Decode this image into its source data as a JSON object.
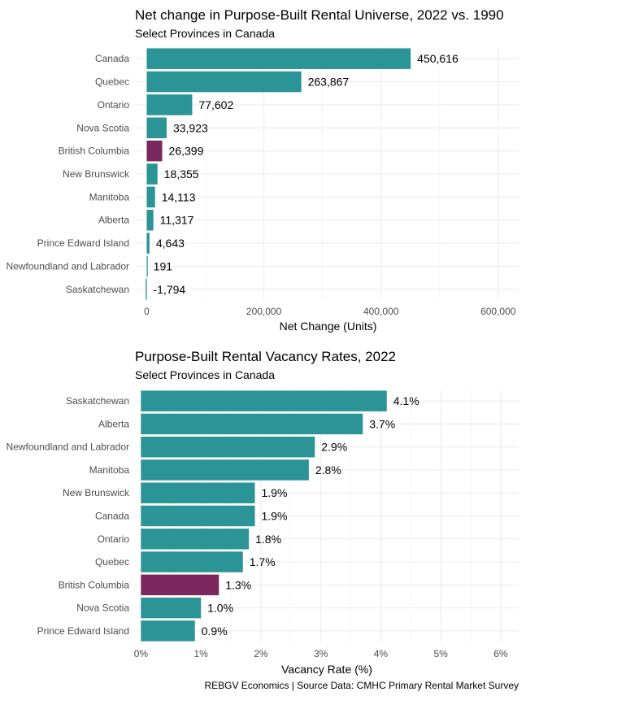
{
  "colors": {
    "default": "#2a9496",
    "highlight": "#7a285e"
  },
  "caption": "REBGV Economics | Source Data: CMHC Primary Rental Market Survey",
  "chart_data": [
    {
      "type": "bar",
      "orientation": "horizontal",
      "title": "Net change in Purpose-Built Rental Universe, 2022 vs. 1990",
      "subtitle": "Select Provinces in Canada",
      "xlabel": "Net Change (Units)",
      "ylabel": "",
      "xlim": [
        -16000,
        635000
      ],
      "xticks": [
        0,
        200000,
        400000,
        600000
      ],
      "xtick_labels": [
        "0",
        "200,000",
        "400,000",
        "600,000"
      ],
      "grid": true,
      "categories": [
        "Canada",
        "Quebec",
        "Ontario",
        "Nova Scotia",
        "British Columbia",
        "New Brunswick",
        "Manitoba",
        "Alberta",
        "Prince Edward Island",
        "Newfoundland and Labrador",
        "Saskatchewan"
      ],
      "values": [
        450616,
        263867,
        77602,
        33923,
        26399,
        18355,
        14113,
        11317,
        4643,
        191,
        -1794
      ],
      "value_labels": [
        "450,616",
        "263,867",
        "77,602",
        "33,923",
        "26,399",
        "18,355",
        "14,113",
        "11,317",
        "4,643",
        "191",
        "-1,794"
      ],
      "highlight": "British Columbia"
    },
    {
      "type": "bar",
      "orientation": "horizontal",
      "title": "Purpose-Built Rental Vacancy Rates, 2022",
      "subtitle": "Select Provinces in Canada",
      "xlabel": "Vacancy Rate (%)",
      "ylabel": "",
      "xlim": [
        -0.1,
        6.3
      ],
      "xticks": [
        0,
        1,
        2,
        3,
        4,
        5,
        6
      ],
      "xtick_labels": [
        "0%",
        "1%",
        "2%",
        "3%",
        "4%",
        "5%",
        "6%"
      ],
      "grid": true,
      "categories": [
        "Saskatchewan",
        "Alberta",
        "Newfoundland and Labrador",
        "Manitoba",
        "New Brunswick",
        "Canada",
        "Ontario",
        "Quebec",
        "British Columbia",
        "Nova Scotia",
        "Prince Edward Island"
      ],
      "values": [
        4.1,
        3.7,
        2.9,
        2.8,
        1.9,
        1.9,
        1.8,
        1.7,
        1.3,
        1.0,
        0.9
      ],
      "value_labels": [
        "4.1%",
        "3.7%",
        "2.9%",
        "2.8%",
        "1.9%",
        "1.9%",
        "1.8%",
        "1.7%",
        "1.3%",
        "1.0%",
        "0.9%"
      ],
      "highlight": "British Columbia"
    }
  ]
}
